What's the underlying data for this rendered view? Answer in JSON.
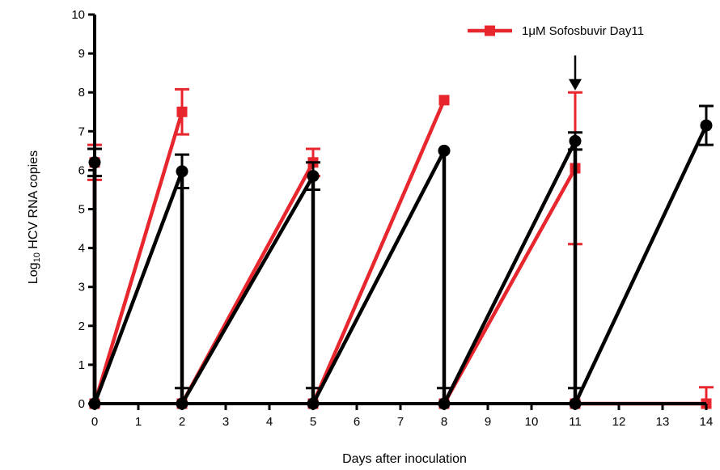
{
  "chart_data": {
    "type": "line",
    "title": "",
    "xlabel": "Days after inoculation",
    "ylabel": {
      "prefix": "Log",
      "subscript": "10",
      "suffix": " HCV RNA copies"
    },
    "xlim": [
      0,
      14
    ],
    "ylim": [
      0,
      10
    ],
    "x_ticks": [
      0,
      1,
      2,
      3,
      4,
      5,
      6,
      7,
      8,
      9,
      10,
      11,
      12,
      13,
      14
    ],
    "y_ticks": [
      0,
      1,
      2,
      3,
      4,
      5,
      6,
      7,
      8,
      9,
      10
    ],
    "grid": false,
    "legend_position": "top-right",
    "colors": {
      "treated": "#e8262d",
      "control": "#000000"
    },
    "series": [
      {
        "key": "treated",
        "name": "1μM Sofosbuvir Day11",
        "marker": "square",
        "color": "#e8262d",
        "segments": [
          [
            {
              "x": 0,
              "y": 6.2,
              "err": 0.45
            },
            {
              "x": 0,
              "y": 0
            }
          ],
          [
            {
              "x": 0,
              "y": 0
            },
            {
              "x": 2,
              "y": 7.5,
              "err": 0.58
            }
          ],
          [
            {
              "x": 2,
              "y": 0
            },
            {
              "x": 5,
              "y": 6.2,
              "err": 0.35
            }
          ],
          [
            {
              "x": 5,
              "y": 0
            },
            {
              "x": 8,
              "y": 7.8,
              "err": 0.0
            }
          ],
          [
            {
              "x": 8,
              "y": 0
            },
            {
              "x": 11,
              "y": 6.05,
              "err": 1.95
            }
          ],
          [
            {
              "x": 11,
              "y": 0
            },
            {
              "x": 14,
              "y": 0,
              "err": 0.42
            }
          ]
        ]
      },
      {
        "key": "control",
        "name": "",
        "marker": "circle",
        "color": "#000000",
        "segments": [
          [
            {
              "x": 0,
              "y": 6.2,
              "err": 0.35
            },
            {
              "x": 0,
              "y": 0
            }
          ],
          [
            {
              "x": 0,
              "y": 0
            },
            {
              "x": 2,
              "y": 5.97,
              "err": 0.43
            }
          ],
          [
            {
              "x": 2,
              "y": 0
            },
            {
              "x": 5,
              "y": 5.85,
              "err": 0.35
            }
          ],
          [
            {
              "x": 5,
              "y": 0
            },
            {
              "x": 8,
              "y": 6.5,
              "err": 0.0
            }
          ],
          [
            {
              "x": 8,
              "y": 0
            },
            {
              "x": 11,
              "y": 6.75,
              "err": 0.22
            }
          ],
          [
            {
              "x": 11,
              "y": 0
            },
            {
              "x": 14,
              "y": 7.15,
              "err": 0.5
            }
          ]
        ],
        "down_bars": [
          {
            "x": 0,
            "from": 6.2,
            "to": 0
          },
          {
            "x": 2,
            "from": 5.97,
            "to": 0
          },
          {
            "x": 5,
            "from": 5.85,
            "to": 0
          },
          {
            "x": 8,
            "from": 6.5,
            "to": 0
          },
          {
            "x": 11,
            "from": 6.75,
            "to": 0
          }
        ],
        "zero_errs": [
          {
            "x": 2,
            "err": 0.4
          },
          {
            "x": 5,
            "err": 0.4
          },
          {
            "x": 8,
            "err": 0.4
          },
          {
            "x": 11,
            "err": 0.4
          }
        ]
      }
    ],
    "annotations": [
      {
        "type": "arrow",
        "x": 11,
        "y_from": 8.95,
        "y_to": 8.05
      }
    ]
  }
}
